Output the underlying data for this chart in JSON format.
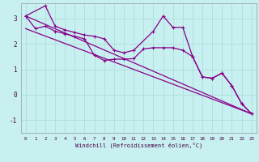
{
  "title": "",
  "xlabel": "Windchill (Refroidissement éolien,°C)",
  "background_color": "#c8f0f0",
  "grid_color": "#b0e0e0",
  "line_color": "#880088",
  "xlim": [
    -0.5,
    23.5
  ],
  "ylim": [
    -1.5,
    3.6
  ],
  "xticks": [
    0,
    1,
    2,
    3,
    4,
    5,
    6,
    7,
    8,
    9,
    10,
    11,
    12,
    13,
    14,
    15,
    16,
    17,
    18,
    19,
    20,
    21,
    22,
    23
  ],
  "yticks": [
    -1,
    0,
    1,
    2,
    3
  ],
  "line1_x": [
    0,
    1,
    2,
    3,
    4,
    5,
    6,
    7,
    8,
    9,
    10,
    11,
    12,
    13,
    14,
    15,
    16,
    17,
    18,
    19,
    20,
    21,
    22,
    23
  ],
  "line1_y": [
    3.1,
    2.6,
    2.7,
    2.5,
    2.4,
    2.3,
    2.2,
    1.55,
    1.35,
    1.4,
    1.4,
    1.42,
    1.8,
    1.85,
    1.85,
    1.85,
    1.75,
    1.5,
    0.7,
    0.65,
    0.85,
    0.35,
    -0.35,
    -0.75
  ],
  "line2_x": [
    0,
    2,
    3,
    4,
    5,
    6,
    7,
    8,
    9,
    10,
    11,
    13,
    14,
    15,
    16,
    17,
    18,
    19,
    20,
    21,
    22,
    23
  ],
  "line2_y": [
    3.1,
    3.5,
    2.7,
    2.55,
    2.45,
    2.35,
    2.3,
    2.2,
    1.75,
    1.65,
    1.75,
    2.5,
    3.1,
    2.65,
    2.65,
    1.5,
    0.7,
    0.65,
    0.85,
    0.35,
    -0.35,
    -0.75
  ],
  "line3_x": [
    0,
    23
  ],
  "line3_y": [
    3.1,
    -0.75
  ],
  "line4_x": [
    0,
    23
  ],
  "line4_y": [
    2.6,
    -0.75
  ]
}
